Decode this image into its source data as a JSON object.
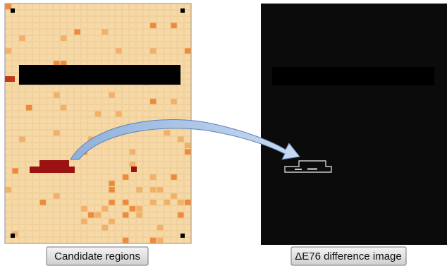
{
  "labels": {
    "left": "Candidate regions",
    "right": "ΔE76 difference image"
  }
}
